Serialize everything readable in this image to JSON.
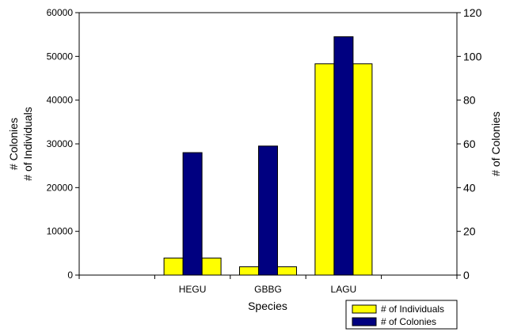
{
  "chart_data": {
    "type": "bar",
    "categories": [
      "HEGU",
      "GBBG",
      "LAGU"
    ],
    "series": [
      {
        "name": "# of Individuals",
        "axis": "left",
        "color": "#FFFF00",
        "values": [
          3900,
          1900,
          48300
        ]
      },
      {
        "name": "# of Colonies",
        "axis": "right",
        "color": "#000080",
        "values": [
          56,
          59,
          109
        ]
      }
    ],
    "xlabel": "Species",
    "ylabel_left_1": "# Colonies",
    "ylabel_left_2": "# of Individuals",
    "ylabel_right": "# of Colonies",
    "ylim_left": [
      0,
      60000
    ],
    "ylim_right": [
      0,
      120
    ],
    "yticks_left": [
      "0",
      "10000",
      "20000",
      "30000",
      "40000",
      "50000",
      "60000"
    ],
    "yticks_right": [
      "0",
      "20",
      "40",
      "60",
      "80",
      "100",
      "120"
    ],
    "grid": false,
    "legend_position": "bottom-right"
  }
}
